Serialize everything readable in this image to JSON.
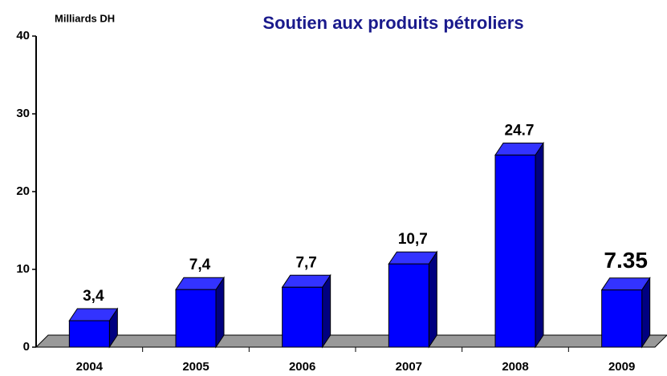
{
  "chart_data": {
    "type": "bar3d",
    "title": "Soutien aux produits pétroliers",
    "y_label": "Milliards DH",
    "categories": [
      "2004",
      "2005",
      "2006",
      "2007",
      "2008",
      "2009"
    ],
    "values": [
      3.4,
      7.4,
      7.7,
      10.7,
      24.7,
      7.35
    ],
    "value_labels": [
      "3,4",
      "7,4",
      "7,7",
      "10,7",
      "24.7",
      "7.35"
    ],
    "color": "#0000ff",
    "ylim": [
      0,
      40
    ],
    "yticks": [
      0,
      10,
      20,
      30,
      40
    ]
  }
}
